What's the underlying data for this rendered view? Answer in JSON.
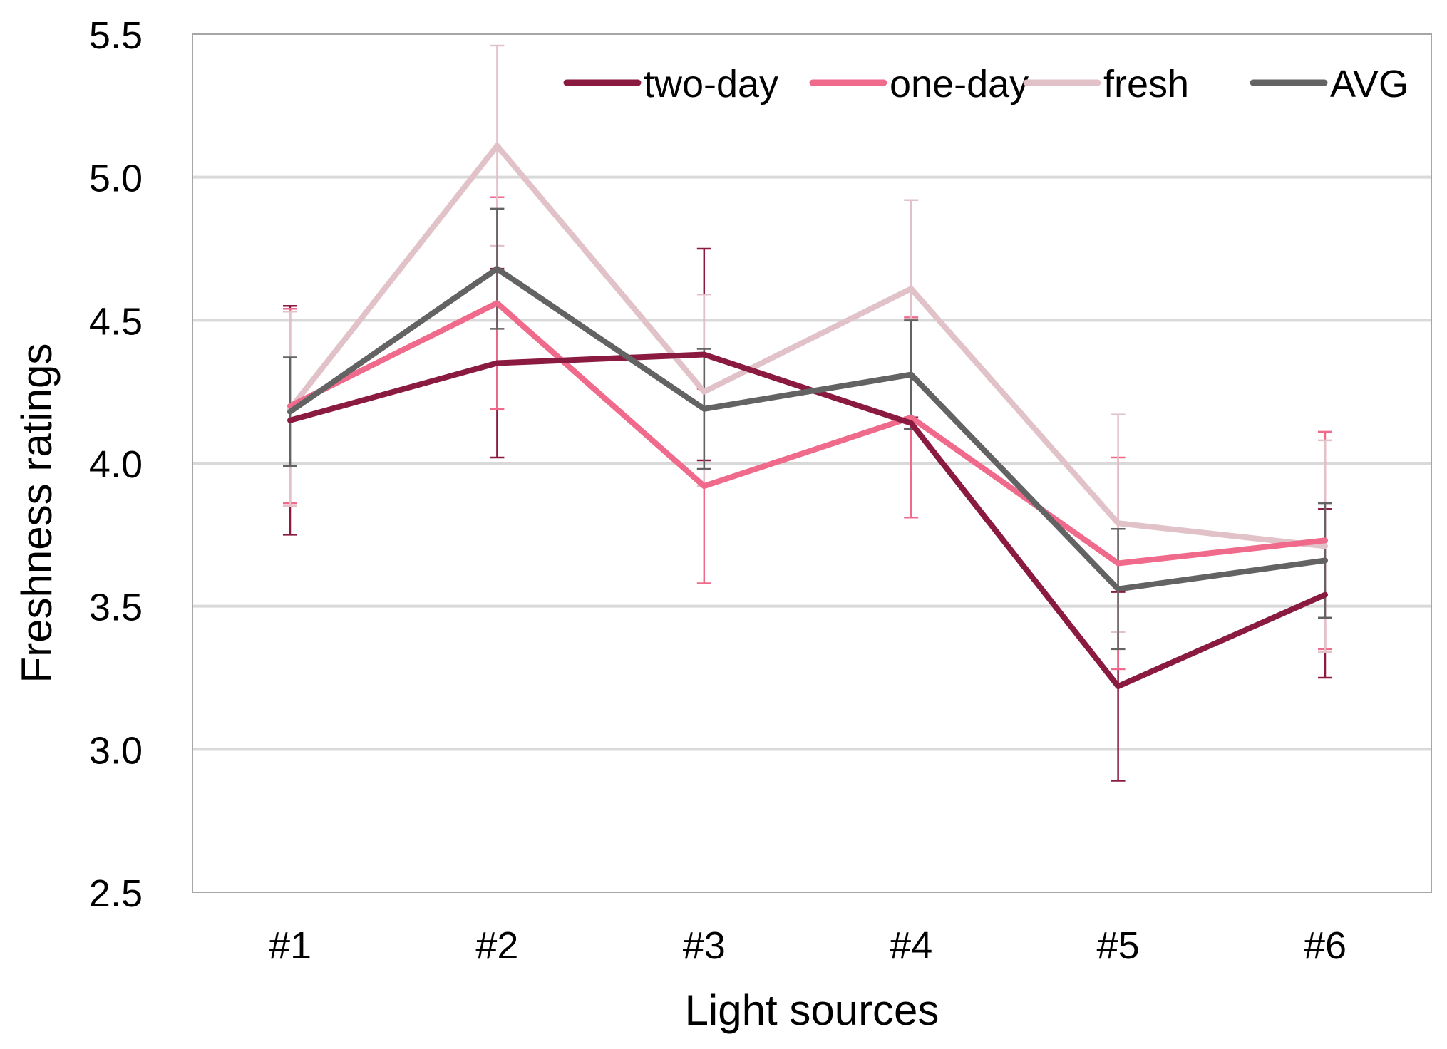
{
  "chart_data": {
    "type": "line",
    "title": "",
    "xlabel": "Light sources",
    "ylabel": "Freshness ratings",
    "categories": [
      "#1",
      "#2",
      "#3",
      "#4",
      "#5",
      "#6"
    ],
    "ylim": [
      2.5,
      5.5
    ],
    "yticks": [
      "2.5",
      "3.0",
      "3.5",
      "4.0",
      "4.5",
      "5.0",
      "5.5"
    ],
    "grid": true,
    "legend_position": "top-right",
    "series": [
      {
        "name": "two-day",
        "color": "#8b1a40",
        "values": [
          4.15,
          4.35,
          4.38,
          4.14,
          3.22,
          3.54
        ],
        "err_low": [
          3.75,
          4.02,
          4.01,
          4.12,
          2.89,
          3.25
        ],
        "err_high": [
          4.55,
          4.68,
          4.75,
          4.16,
          3.55,
          3.84
        ]
      },
      {
        "name": "one-day",
        "color": "#f06a8c",
        "values": [
          4.2,
          4.56,
          3.92,
          4.16,
          3.65,
          3.73
        ],
        "err_low": [
          3.86,
          4.19,
          3.58,
          3.81,
          3.28,
          3.35
        ],
        "err_high": [
          4.54,
          4.93,
          4.26,
          4.51,
          4.02,
          4.11
        ]
      },
      {
        "name": "fresh",
        "color": "#e1c2c9",
        "values": [
          4.19,
          5.11,
          4.25,
          4.61,
          3.79,
          3.71
        ],
        "err_low": [
          3.85,
          4.76,
          3.92,
          4.3,
          3.41,
          3.34
        ],
        "err_high": [
          4.53,
          5.46,
          4.59,
          4.92,
          4.17,
          4.08
        ]
      },
      {
        "name": "AVG",
        "color": "#636363",
        "values": [
          4.18,
          4.68,
          4.19,
          4.31,
          3.56,
          3.66
        ],
        "err_low": [
          3.99,
          4.47,
          3.98,
          4.12,
          3.35,
          3.46
        ],
        "err_high": [
          4.37,
          4.89,
          4.4,
          4.5,
          3.77,
          3.86
        ]
      }
    ]
  }
}
